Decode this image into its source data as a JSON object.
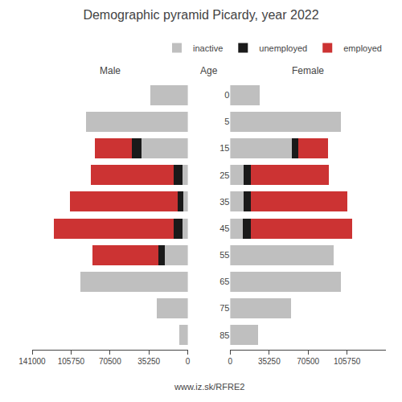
{
  "chart_data": {
    "type": "bar",
    "orientation": "horizontal",
    "stacked": true,
    "title": "Demographic pyramid Picardy, year 2022",
    "ylabel": "Age",
    "annotations": [
      "www.iz.sk/RFRE2"
    ],
    "legend": "upper right",
    "grid": false,
    "categories": [
      "85",
      "75",
      "65",
      "55",
      "45",
      "35",
      "25",
      "15",
      "5",
      "0"
    ],
    "panels": [
      {
        "title": "Male",
        "xlim": [
          141000,
          0
        ],
        "xticks": [
          0,
          35250,
          70500,
          105750,
          141000
        ],
        "tick_labels": "x",
        "series": [
          {
            "name": "inactive",
            "color": "#bfbfbf",
            "values": [
              8000,
              28000,
              97000,
              21000,
              4500,
              4000,
              5000,
              42000,
              92000,
              34000
            ]
          },
          {
            "name": "unemployed",
            "color": "#1a1a1a",
            "values": [
              0,
              0,
              0,
              5500,
              8500,
              5500,
              8000,
              9000,
              0,
              0
            ]
          },
          {
            "name": "employed",
            "color": "#cc3333",
            "values": [
              0,
              0,
              0,
              60000,
              108000,
              97000,
              75000,
              33000,
              0,
              0
            ]
          }
        ]
      },
      {
        "title": "Female",
        "xlim": [
          0,
          141000
        ],
        "xticks": [
          0,
          35250,
          70500,
          105750
        ],
        "series": [
          {
            "name": "inactive",
            "color": "#bfbfbf",
            "values": [
              25000,
              55000,
              100000,
              94000,
              11000,
              12000,
              12000,
              56000,
              100000,
              27000
            ]
          },
          {
            "name": "unemployed",
            "color": "#1a1a1a",
            "values": [
              0,
              0,
              0,
              0,
              7500,
              7000,
              7000,
              5500,
              0,
              0
            ]
          },
          {
            "name": "employed",
            "color": "#cc3333",
            "values": [
              0,
              0,
              0,
              0,
              92000,
              87000,
              70000,
              27000,
              0,
              0
            ]
          }
        ]
      }
    ]
  }
}
